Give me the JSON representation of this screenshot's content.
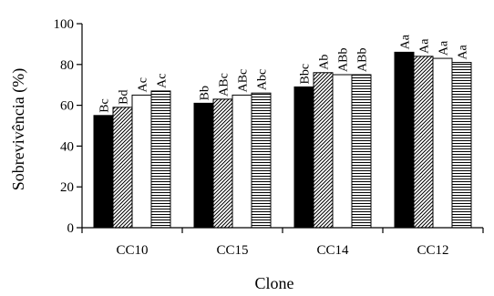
{
  "chart_data": {
    "type": "bar",
    "title": "",
    "xlabel": "Clone",
    "ylabel": "Sobrevivência (%)",
    "ylim": [
      0,
      100
    ],
    "yticks": [
      0,
      20,
      40,
      60,
      80,
      100
    ],
    "categories": [
      "CC10",
      "CC15",
      "CC14",
      "CC12"
    ],
    "legend": "none",
    "grid": false,
    "series": [
      {
        "fill": "solid-black",
        "color": "#000000",
        "values": [
          55,
          61,
          69,
          86
        ],
        "labels": [
          "Bc",
          "Bb",
          "Bbc",
          "Aa"
        ]
      },
      {
        "fill": "diagonal-hatch",
        "color": "#000000",
        "values": [
          59,
          63,
          76,
          84
        ],
        "labels": [
          "Bd",
          "ABc",
          "Ab",
          "Aa"
        ]
      },
      {
        "fill": "white",
        "color": "#ffffff",
        "values": [
          65,
          65,
          75,
          83
        ],
        "labels": [
          "Ac",
          "ABc",
          "ABb",
          "Aa"
        ]
      },
      {
        "fill": "horizontal-hatch",
        "color": "#000000",
        "values": [
          67,
          66,
          75,
          81
        ],
        "labels": [
          "Ac",
          "Abc",
          "ABb",
          "Aa"
        ]
      }
    ]
  }
}
